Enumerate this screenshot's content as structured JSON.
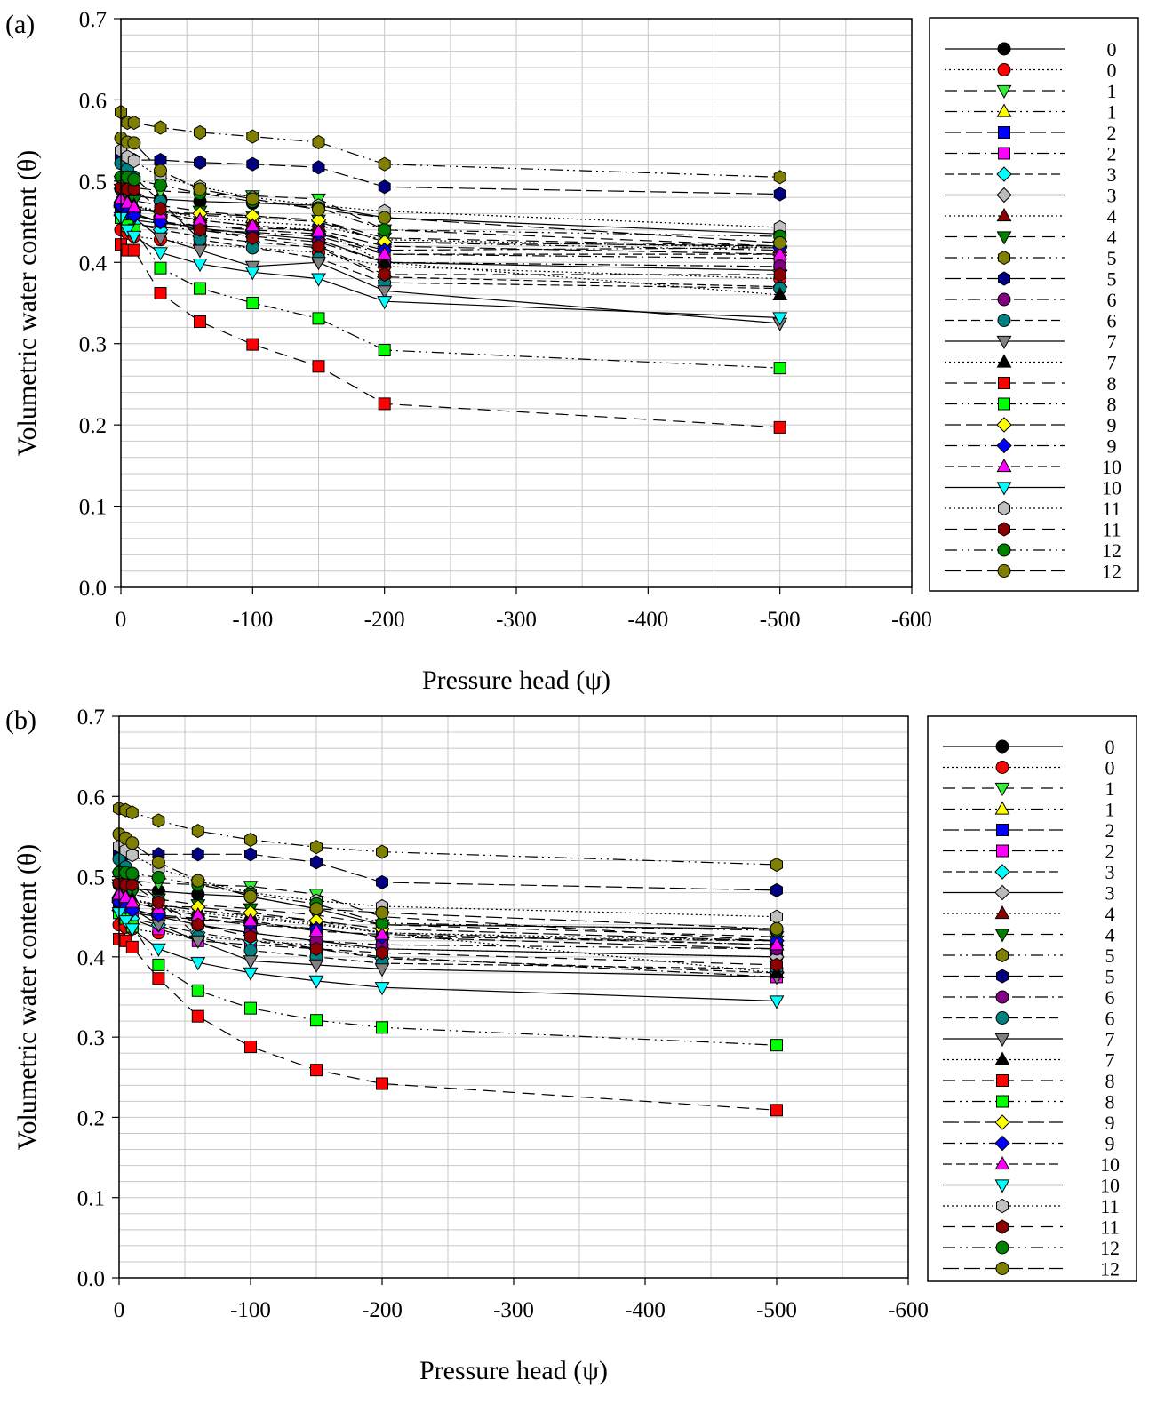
{
  "chart_data": [
    {
      "panel_label": "(a)",
      "type": "line",
      "xlabel": "Pressure head (ψ)",
      "ylabel": "Volumetric water content (θ)",
      "xlim": [
        0,
        -600
      ],
      "ylim": [
        0.0,
        0.7
      ],
      "x_ticks": [
        "0",
        "-100",
        "-200",
        "-300",
        "-400",
        "-500",
        "-600"
      ],
      "y_ticks": [
        "0.0",
        "0.1",
        "0.2",
        "0.3",
        "0.4",
        "0.5",
        "0.6",
        "0.7"
      ],
      "x": [
        0,
        -5,
        -10,
        -30,
        -60,
        -100,
        -150,
        -200,
        -500
      ],
      "series": [
        {
          "name": "0",
          "marker": "circle",
          "color": "#000000",
          "dash": "",
          "values": [
            0.49,
            0.485,
            0.482,
            0.478,
            0.475,
            0.473,
            0.47,
            0.455,
            0.435
          ]
        },
        {
          "name": "0",
          "marker": "circle",
          "color": "#ff0000",
          "dash": "2,3",
          "values": [
            0.44,
            0.436,
            0.432,
            0.428,
            0.422,
            0.418,
            0.412,
            0.395,
            0.38
          ]
        },
        {
          "name": "1",
          "marker": "tri-down",
          "color": "#33ee33",
          "dash": "14,8",
          "values": [
            0.5,
            0.495,
            0.492,
            0.488,
            0.485,
            0.482,
            0.478,
            0.44,
            0.42
          ]
        },
        {
          "name": "1",
          "marker": "tri-up",
          "color": "#ffff00",
          "dash": "14,5,2,5,2,5",
          "values": [
            0.475,
            0.47,
            0.468,
            0.462,
            0.458,
            0.455,
            0.45,
            0.425,
            0.415
          ]
        },
        {
          "name": "2",
          "marker": "square",
          "color": "#0000ff",
          "dash": "18,6",
          "values": [
            0.46,
            0.455,
            0.452,
            0.448,
            0.445,
            0.442,
            0.44,
            0.42,
            0.41
          ]
        },
        {
          "name": "2",
          "marker": "square",
          "color": "#ff00ff",
          "dash": "14,5,2,5",
          "values": [
            0.455,
            0.45,
            0.447,
            0.443,
            0.44,
            0.437,
            0.432,
            0.41,
            0.405
          ]
        },
        {
          "name": "3",
          "marker": "diamond",
          "color": "#00ffff",
          "dash": "10,5",
          "values": [
            0.458,
            0.452,
            0.448,
            0.44,
            0.432,
            0.425,
            0.418,
            0.382,
            0.37
          ]
        },
        {
          "name": "3",
          "marker": "diamond",
          "color": "#bbbbbb",
          "dash": "",
          "values": [
            0.468,
            0.462,
            0.458,
            0.45,
            0.442,
            0.435,
            0.428,
            0.4,
            0.39
          ]
        },
        {
          "name": "4",
          "marker": "tri-up",
          "color": "#8b0000",
          "dash": "2,3",
          "values": [
            0.48,
            0.475,
            0.47,
            0.463,
            0.455,
            0.45,
            0.445,
            0.428,
            0.418
          ]
        },
        {
          "name": "4",
          "marker": "tri-down",
          "color": "#008000",
          "dash": "14,8",
          "values": [
            0.485,
            0.48,
            0.476,
            0.47,
            0.463,
            0.457,
            0.452,
            0.43,
            0.42
          ]
        },
        {
          "name": "5",
          "marker": "hexagon",
          "color": "#808000",
          "dash": "14,5,2,5,2,5",
          "values": [
            0.585,
            0.572,
            0.572,
            0.566,
            0.56,
            0.555,
            0.548,
            0.521,
            0.505
          ]
        },
        {
          "name": "5",
          "marker": "hexagon",
          "color": "#000080",
          "dash": "18,6",
          "values": [
            0.53,
            0.527,
            0.526,
            0.526,
            0.523,
            0.521,
            0.517,
            0.493,
            0.484
          ]
        },
        {
          "name": "6",
          "marker": "circle",
          "color": "#800080",
          "dash": "14,5,2,5",
          "values": [
            0.47,
            0.465,
            0.46,
            0.45,
            0.44,
            0.432,
            0.425,
            0.4,
            0.395
          ]
        },
        {
          "name": "6",
          "marker": "circle",
          "color": "#008080",
          "dash": "10,5",
          "values": [
            0.522,
            0.515,
            0.505,
            0.475,
            0.428,
            0.418,
            0.405,
            0.375,
            0.368
          ]
        },
        {
          "name": "7",
          "marker": "tri-down",
          "color": "#808080",
          "dash": "",
          "values": [
            0.49,
            0.465,
            0.455,
            0.43,
            0.415,
            0.395,
            0.4,
            0.365,
            0.325
          ]
        },
        {
          "name": "7",
          "marker": "tri-up",
          "color": "#000000",
          "dash": "2,3",
          "values": [
            0.48,
            0.475,
            0.47,
            0.46,
            0.452,
            0.445,
            0.44,
            0.4,
            0.36
          ]
        },
        {
          "name": "8",
          "marker": "square",
          "color": "#ff0000",
          "dash": "14,8",
          "values": [
            0.422,
            0.415,
            0.415,
            0.362,
            0.327,
            0.299,
            0.272,
            0.226,
            0.197
          ]
        },
        {
          "name": "8",
          "marker": "square",
          "color": "#00ff00",
          "dash": "14,5,2,5,2,5",
          "values": [
            0.455,
            0.445,
            0.44,
            0.393,
            0.368,
            0.35,
            0.331,
            0.292,
            0.27
          ]
        },
        {
          "name": "9",
          "marker": "diamond",
          "color": "#ffff00",
          "dash": "18,6",
          "values": [
            0.47,
            0.467,
            0.465,
            0.462,
            0.46,
            0.457,
            0.452,
            0.425,
            0.42
          ]
        },
        {
          "name": "9",
          "marker": "diamond",
          "color": "#0000ff",
          "dash": "14,5,2,5",
          "values": [
            0.47,
            0.462,
            0.458,
            0.45,
            0.445,
            0.44,
            0.435,
            0.415,
            0.418
          ]
        },
        {
          "name": "10",
          "marker": "tri-up",
          "color": "#ff00ff",
          "dash": "10,5",
          "values": [
            0.478,
            0.473,
            0.468,
            0.46,
            0.452,
            0.445,
            0.438,
            0.41,
            0.41
          ]
        },
        {
          "name": "10",
          "marker": "tri-down",
          "color": "#00ffff",
          "dash": "",
          "values": [
            0.455,
            0.44,
            0.432,
            0.412,
            0.398,
            0.388,
            0.38,
            0.352,
            0.332
          ]
        },
        {
          "name": "11",
          "marker": "hexagon",
          "color": "#c0c0c0",
          "dash": "2,3",
          "values": [
            0.538,
            0.53,
            0.525,
            0.505,
            0.493,
            0.48,
            0.47,
            0.463,
            0.443
          ]
        },
        {
          "name": "11",
          "marker": "hexagon",
          "color": "#8b0000",
          "dash": "14,8",
          "values": [
            0.492,
            0.49,
            0.49,
            0.466,
            0.44,
            0.43,
            0.42,
            0.385,
            0.385
          ]
        },
        {
          "name": "12",
          "marker": "circle",
          "color": "#008000",
          "dash": "14,5,2,5,2,5",
          "values": [
            0.505,
            0.505,
            0.502,
            0.495,
            0.485,
            0.475,
            0.467,
            0.44,
            0.432
          ]
        },
        {
          "name": "12",
          "marker": "circle",
          "color": "#808000",
          "dash": "18,6",
          "values": [
            0.553,
            0.548,
            0.547,
            0.513,
            0.49,
            0.478,
            0.465,
            0.455,
            0.424
          ]
        }
      ]
    },
    {
      "panel_label": "(b)",
      "type": "line",
      "xlabel": "Pressure head (ψ)",
      "ylabel": "Volumetric water content (θ)",
      "xlim": [
        0,
        -600
      ],
      "ylim": [
        0.0,
        0.7
      ],
      "x_ticks": [
        "0",
        "-100",
        "-200",
        "-300",
        "-400",
        "-500",
        "-600"
      ],
      "y_ticks": [
        "0.0",
        "0.1",
        "0.2",
        "0.3",
        "0.4",
        "0.5",
        "0.6",
        "0.7"
      ],
      "x": [
        0,
        -5,
        -10,
        -30,
        -60,
        -100,
        -150,
        -200,
        -500
      ],
      "series": [
        {
          "name": "0",
          "marker": "circle",
          "color": "#000000",
          "dash": "",
          "values": [
            0.49,
            0.487,
            0.485,
            0.482,
            0.478,
            0.475,
            0.46,
            0.44,
            0.435
          ]
        },
        {
          "name": "0",
          "marker": "circle",
          "color": "#ff0000",
          "dash": "2,3",
          "values": [
            0.44,
            0.437,
            0.435,
            0.43,
            0.425,
            0.42,
            0.415,
            0.41,
            0.4
          ]
        },
        {
          "name": "1",
          "marker": "tri-down",
          "color": "#33ee33",
          "dash": "14,8",
          "values": [
            0.5,
            0.497,
            0.495,
            0.492,
            0.49,
            0.488,
            0.478,
            0.45,
            0.42
          ]
        },
        {
          "name": "1",
          "marker": "tri-up",
          "color": "#ffff00",
          "dash": "14,5,2,5,2,5",
          "values": [
            0.478,
            0.472,
            0.47,
            0.465,
            0.458,
            0.452,
            0.445,
            0.43,
            0.415
          ]
        },
        {
          "name": "2",
          "marker": "square",
          "color": "#0000ff",
          "dash": "18,6",
          "values": [
            0.462,
            0.457,
            0.455,
            0.45,
            0.447,
            0.44,
            0.435,
            0.425,
            0.41
          ]
        },
        {
          "name": "2",
          "marker": "square",
          "color": "#ff00ff",
          "dash": "14,5,2,5",
          "values": [
            0.455,
            0.45,
            0.447,
            0.435,
            0.42,
            0.415,
            0.41,
            0.4,
            0.375
          ]
        },
        {
          "name": "3",
          "marker": "diamond",
          "color": "#00ffff",
          "dash": "10,5",
          "values": [
            0.458,
            0.452,
            0.448,
            0.44,
            0.43,
            0.42,
            0.41,
            0.398,
            0.38
          ]
        },
        {
          "name": "3",
          "marker": "diamond",
          "color": "#bbbbbb",
          "dash": "",
          "values": [
            0.47,
            0.465,
            0.46,
            0.45,
            0.44,
            0.43,
            0.42,
            0.41,
            0.4
          ]
        },
        {
          "name": "4",
          "marker": "tri-up",
          "color": "#8b0000",
          "dash": "2,3",
          "values": [
            0.48,
            0.475,
            0.472,
            0.465,
            0.458,
            0.45,
            0.442,
            0.43,
            0.42
          ]
        },
        {
          "name": "4",
          "marker": "tri-down",
          "color": "#008000",
          "dash": "14,8",
          "values": [
            0.486,
            0.482,
            0.478,
            0.472,
            0.465,
            0.46,
            0.452,
            0.44,
            0.425
          ]
        },
        {
          "name": "5",
          "marker": "hexagon",
          "color": "#808000",
          "dash": "14,5,2,5,2,5",
          "values": [
            0.585,
            0.583,
            0.58,
            0.57,
            0.557,
            0.546,
            0.537,
            0.531,
            0.515
          ]
        },
        {
          "name": "5",
          "marker": "hexagon",
          "color": "#000080",
          "dash": "18,6",
          "values": [
            0.53,
            0.528,
            0.528,
            0.528,
            0.528,
            0.528,
            0.518,
            0.493,
            0.483
          ]
        },
        {
          "name": "6",
          "marker": "circle",
          "color": "#800080",
          "dash": "14,5,2,5",
          "values": [
            0.47,
            0.465,
            0.46,
            0.45,
            0.44,
            0.43,
            0.42,
            0.415,
            0.41
          ]
        },
        {
          "name": "6",
          "marker": "circle",
          "color": "#008080",
          "dash": "10,5",
          "values": [
            0.522,
            0.512,
            0.5,
            0.47,
            0.425,
            0.408,
            0.4,
            0.392,
            0.385
          ]
        },
        {
          "name": "7",
          "marker": "tri-down",
          "color": "#808080",
          "dash": "",
          "values": [
            0.49,
            0.47,
            0.46,
            0.44,
            0.42,
            0.395,
            0.39,
            0.385,
            0.375
          ]
        },
        {
          "name": "7",
          "marker": "tri-up",
          "color": "#000000",
          "dash": "2,3",
          "values": [
            0.48,
            0.476,
            0.472,
            0.462,
            0.455,
            0.448,
            0.44,
            0.43,
            0.38
          ]
        },
        {
          "name": "8",
          "marker": "square",
          "color": "#ff0000",
          "dash": "14,8",
          "values": [
            0.422,
            0.42,
            0.412,
            0.373,
            0.326,
            0.288,
            0.259,
            0.242,
            0.209
          ]
        },
        {
          "name": "8",
          "marker": "square",
          "color": "#00ff00",
          "dash": "14,5,2,5,2,5",
          "values": [
            0.455,
            0.448,
            0.438,
            0.39,
            0.358,
            0.336,
            0.321,
            0.312,
            0.29
          ]
        },
        {
          "name": "9",
          "marker": "diamond",
          "color": "#ffff00",
          "dash": "18,6",
          "values": [
            0.472,
            0.468,
            0.466,
            0.463,
            0.462,
            0.455,
            0.445,
            0.435,
            0.42
          ]
        },
        {
          "name": "9",
          "marker": "diamond",
          "color": "#0000ff",
          "dash": "14,5,2,5",
          "values": [
            0.468,
            0.462,
            0.458,
            0.452,
            0.448,
            0.442,
            0.435,
            0.425,
            0.42
          ]
        },
        {
          "name": "10",
          "marker": "tri-up",
          "color": "#ff00ff",
          "dash": "10,5",
          "values": [
            0.478,
            0.474,
            0.468,
            0.46,
            0.452,
            0.445,
            0.432,
            0.428,
            0.415
          ]
        },
        {
          "name": "10",
          "marker": "tri-down",
          "color": "#00ffff",
          "dash": "",
          "values": [
            0.455,
            0.445,
            0.435,
            0.41,
            0.393,
            0.38,
            0.37,
            0.362,
            0.345
          ]
        },
        {
          "name": "11",
          "marker": "hexagon",
          "color": "#c0c0c0",
          "dash": "2,3",
          "values": [
            0.538,
            0.533,
            0.527,
            0.51,
            0.495,
            0.48,
            0.47,
            0.463,
            0.45
          ]
        },
        {
          "name": "11",
          "marker": "hexagon",
          "color": "#8b0000",
          "dash": "14,8",
          "values": [
            0.492,
            0.49,
            0.49,
            0.468,
            0.44,
            0.425,
            0.41,
            0.405,
            0.39
          ]
        },
        {
          "name": "12",
          "marker": "circle",
          "color": "#008000",
          "dash": "14,5,2,5,2,5",
          "values": [
            0.505,
            0.505,
            0.504,
            0.499,
            0.49,
            0.478,
            0.466,
            0.442,
            0.433
          ]
        },
        {
          "name": "12",
          "marker": "circle",
          "color": "#808000",
          "dash": "18,6",
          "values": [
            0.553,
            0.548,
            0.542,
            0.518,
            0.495,
            0.475,
            0.46,
            0.455,
            0.435
          ]
        }
      ]
    }
  ]
}
